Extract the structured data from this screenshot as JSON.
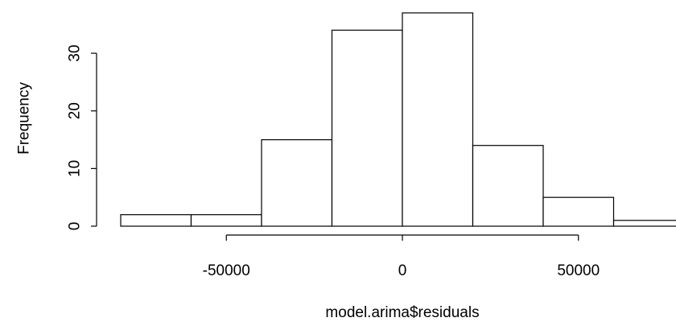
{
  "chart_data": {
    "type": "bar",
    "subtype": "histogram",
    "title": "",
    "xlabel": "model.arima$residuals",
    "ylabel": "Frequency",
    "bins": [
      {
        "from": -80000,
        "to": -60000,
        "count": 2
      },
      {
        "from": -60000,
        "to": -40000,
        "count": 2
      },
      {
        "from": -40000,
        "to": -20000,
        "count": 15
      },
      {
        "from": -20000,
        "to": 0,
        "count": 34
      },
      {
        "from": 0,
        "to": 20000,
        "count": 37
      },
      {
        "from": 20000,
        "to": 40000,
        "count": 14
      },
      {
        "from": 40000,
        "to": 60000,
        "count": 5
      },
      {
        "from": 60000,
        "to": 80000,
        "count": 1
      }
    ],
    "xlim": [
      -80000,
      80000
    ],
    "ylim": [
      0,
      37
    ],
    "x_axis_range": [
      -50000,
      50000
    ],
    "y_axis_range": [
      0,
      30
    ],
    "xticks": [
      -50000,
      0,
      50000
    ],
    "xtick_labels": [
      "-50000",
      "0",
      "50000"
    ],
    "yticks": [
      0,
      10,
      20,
      30
    ],
    "ytick_labels": [
      "0",
      "10",
      "20",
      "30"
    ],
    "bar_fill": "#ffffff",
    "bar_stroke": "#000000",
    "grid": false,
    "legend": "none"
  }
}
